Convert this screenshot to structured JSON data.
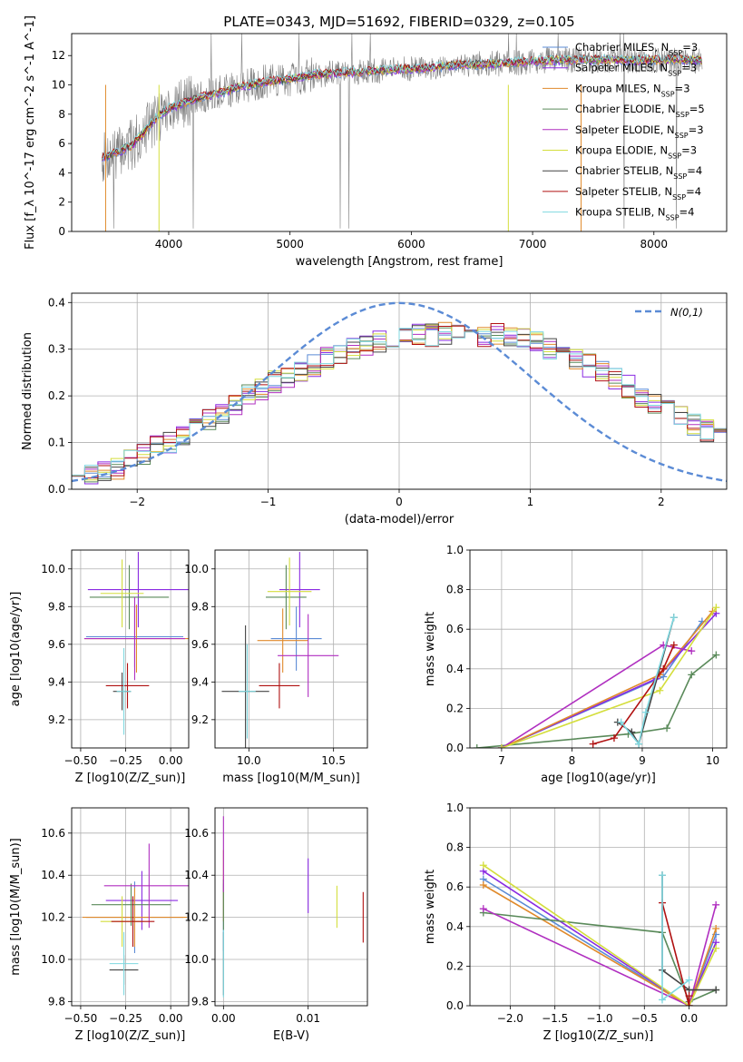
{
  "figure": {
    "title": "PLATE=0343, MJD=51692, FIBERID=0329, z=0.105"
  },
  "models": [
    {
      "name": "Chabrier MILES",
      "nssp": "3",
      "color": "#5b8bd5"
    },
    {
      "name": "Salpeter MILES",
      "nssp": "3",
      "color": "#8a2be2"
    },
    {
      "name": "Kroupa MILES",
      "nssp": "3",
      "color": "#e08a2b"
    },
    {
      "name": "Chabrier ELODIE",
      "nssp": "5",
      "color": "#5a8a5a"
    },
    {
      "name": "Salpeter ELODIE",
      "nssp": "3",
      "color": "#b02fc0"
    },
    {
      "name": "Kroupa ELODIE",
      "nssp": "3",
      "color": "#d4de3c"
    },
    {
      "name": "Chabrier STELIB",
      "nssp": "4",
      "color": "#444444"
    },
    {
      "name": "Salpeter STELIB",
      "nssp": "4",
      "color": "#b01010"
    },
    {
      "name": "Kroupa STELIB",
      "nssp": "4",
      "color": "#7fd8e0"
    }
  ],
  "chart_data": [
    {
      "id": "spectrum",
      "type": "line",
      "xlabel": "wavelength [Angstrom, rest frame]",
      "ylabel": "Flux [f_λ 10^-17 erg cm^-2 s^-1 A^-1]",
      "xlim": [
        3200,
        8600
      ],
      "ylim": [
        0,
        13.5
      ],
      "xticks": [
        4000,
        5000,
        6000,
        7000,
        8000
      ],
      "yticks": [
        0,
        2,
        4,
        6,
        8,
        10,
        12
      ],
      "grid": false,
      "legend": "right",
      "data_color": "#808080",
      "continuum_x": [
        3450,
        3600,
        3700,
        3800,
        3900,
        4000,
        4200,
        4400,
        4600,
        4800,
        5000,
        5200,
        5400,
        5600,
        5800,
        6000,
        6200,
        6400,
        6600,
        6800,
        7000,
        7200,
        7400
      ],
      "continuum_y": [
        5.0,
        5.5,
        5.9,
        6.8,
        7.8,
        8.4,
        9.0,
        9.4,
        9.9,
        10.2,
        10.4,
        10.7,
        10.8,
        10.9,
        11.0,
        11.1,
        11.2,
        11.4,
        11.4,
        11.5,
        11.6,
        11.7,
        11.7
      ]
    },
    {
      "id": "residuals",
      "type": "histogram",
      "xlabel": "(data-model)/error",
      "ylabel": "Normed distribution",
      "xlim": [
        -2.5,
        2.5
      ],
      "ylim": [
        0,
        0.42
      ],
      "xticks": [
        -2,
        -1,
        0,
        1,
        2
      ],
      "yticks": [
        0.0,
        0.1,
        0.2,
        0.3,
        0.4
      ],
      "grid": true,
      "legend": "top-right",
      "gaussian_label": "N(0,1)",
      "gaussian_color": "#5b8bd5",
      "bin_edges_start": -2.5,
      "bin_width": 0.1,
      "base_hist": [
        0.035,
        0.035,
        0.04,
        0.045,
        0.06,
        0.075,
        0.09,
        0.1,
        0.12,
        0.135,
        0.15,
        0.165,
        0.18,
        0.2,
        0.215,
        0.23,
        0.24,
        0.25,
        0.265,
        0.28,
        0.29,
        0.3,
        0.31,
        0.315,
        0.32,
        0.325,
        0.33,
        0.33,
        0.335,
        0.335,
        0.335,
        0.33,
        0.33,
        0.325,
        0.32,
        0.315,
        0.3,
        0.29,
        0.28,
        0.265,
        0.25,
        0.235,
        0.22,
        0.2,
        0.185,
        0.17,
        0.155,
        0.14,
        0.125,
        0.11
      ]
    },
    {
      "id": "Z_vs_age",
      "type": "scatter",
      "xlabel": "Z [log10(Z/Z_sun)]",
      "ylabel": "age [log10(age/yr)]",
      "xlim": [
        -0.55,
        0.1
      ],
      "ylim": [
        9.05,
        10.1
      ],
      "xticks": [
        -0.5,
        -0.25,
        0.0
      ],
      "yticks": [
        9.2,
        9.4,
        9.6,
        9.8,
        10.0
      ],
      "grid": true,
      "points": [
        {
          "model": 0,
          "x": -0.2,
          "xerr": 0.27,
          "y": 9.64,
          "yerr": 0.16
        },
        {
          "model": 1,
          "x": -0.18,
          "xerr": 0.28,
          "y": 9.89,
          "yerr": 0.2
        },
        {
          "model": 2,
          "x": -0.19,
          "xerr": 0.29,
          "y": 9.63,
          "yerr": 0.18
        },
        {
          "model": 3,
          "x": -0.23,
          "xerr": 0.22,
          "y": 9.85,
          "yerr": 0.17
        },
        {
          "model": 4,
          "x": -0.2,
          "xerr": 0.28,
          "y": 9.63,
          "yerr": 0.22
        },
        {
          "model": 5,
          "x": -0.27,
          "xerr": 0.12,
          "y": 9.87,
          "yerr": 0.18
        },
        {
          "model": 6,
          "x": -0.27,
          "xerr": 0.05,
          "y": 9.35,
          "yerr": 0.1
        },
        {
          "model": 7,
          "x": -0.24,
          "xerr": 0.12,
          "y": 9.38,
          "yerr": 0.12
        },
        {
          "model": 8,
          "x": -0.26,
          "xerr": 0.04,
          "y": 9.35,
          "yerr": 0.23
        }
      ]
    },
    {
      "id": "mass_vs_age",
      "type": "scatter",
      "xlabel": "mass [log10(M/M_sun)]",
      "ylabel": "",
      "xlim": [
        9.8,
        10.7
      ],
      "ylim": [
        9.05,
        10.1
      ],
      "xticks": [
        10.0,
        10.5
      ],
      "yticks": [
        9.2,
        9.4,
        9.6,
        9.8,
        10.0
      ],
      "grid": true,
      "points": [
        {
          "model": 0,
          "x": 10.28,
          "xerr": 0.15,
          "y": 9.63,
          "yerr": 0.17
        },
        {
          "model": 1,
          "x": 10.3,
          "xerr": 0.12,
          "y": 9.89,
          "yerr": 0.2
        },
        {
          "model": 2,
          "x": 10.2,
          "xerr": 0.15,
          "y": 9.62,
          "yerr": 0.17
        },
        {
          "model": 3,
          "x": 10.22,
          "xerr": 0.12,
          "y": 9.85,
          "yerr": 0.17
        },
        {
          "model": 4,
          "x": 10.35,
          "xerr": 0.18,
          "y": 9.54,
          "yerr": 0.22
        },
        {
          "model": 5,
          "x": 10.24,
          "xerr": 0.13,
          "y": 9.88,
          "yerr": 0.18
        },
        {
          "model": 6,
          "x": 9.98,
          "xerr": 0.14,
          "y": 9.35,
          "yerr": 0.35
        },
        {
          "model": 7,
          "x": 10.18,
          "xerr": 0.12,
          "y": 9.38,
          "yerr": 0.12
        },
        {
          "model": 8,
          "x": 9.99,
          "xerr": 0.05,
          "y": 9.35,
          "yerr": 0.25
        }
      ]
    },
    {
      "id": "age_vs_massweight",
      "type": "line",
      "xlabel": "age [log10(age/yr)]",
      "ylabel": "mass weight",
      "xlim": [
        6.55,
        10.2
      ],
      "ylim": [
        0,
        1.0
      ],
      "xticks": [
        7,
        8,
        9,
        10
      ],
      "yticks": [
        0.0,
        0.2,
        0.4,
        0.6,
        0.8,
        1.0
      ],
      "grid": true,
      "series": [
        {
          "model": 0,
          "x": [
            7.0,
            9.3,
            9.85
          ],
          "y": [
            0.0,
            0.36,
            0.64
          ]
        },
        {
          "model": 1,
          "x": [
            7.0,
            9.2,
            10.05
          ],
          "y": [
            0.0,
            0.35,
            0.68
          ]
        },
        {
          "model": 2,
          "x": [
            7.0,
            9.25,
            10.0
          ],
          "y": [
            0.0,
            0.37,
            0.69
          ]
        },
        {
          "model": 3,
          "x": [
            6.65,
            8.8,
            9.35,
            9.7,
            10.05
          ],
          "y": [
            0.0,
            0.07,
            0.1,
            0.37,
            0.47
          ]
        },
        {
          "model": 4,
          "x": [
            7.0,
            9.3,
            9.7
          ],
          "y": [
            0.0,
            0.52,
            0.49
          ]
        },
        {
          "model": 5,
          "x": [
            7.0,
            9.25,
            10.05
          ],
          "y": [
            0.0,
            0.29,
            0.71
          ]
        },
        {
          "model": 6,
          "x": [
            8.65,
            8.85,
            8.95,
            9.45
          ],
          "y": [
            0.13,
            0.08,
            0.02,
            0.66
          ]
        },
        {
          "model": 7,
          "x": [
            8.3,
            8.6,
            9.3,
            9.45
          ],
          "y": [
            0.02,
            0.05,
            0.4,
            0.52
          ]
        },
        {
          "model": 8,
          "x": [
            8.7,
            8.95,
            9.05,
            9.45
          ],
          "y": [
            0.13,
            0.02,
            0.18,
            0.66
          ]
        }
      ]
    },
    {
      "id": "Z_vs_mass",
      "type": "scatter",
      "xlabel": "Z [log10(Z/Z_sun)]",
      "ylabel": "mass [log10(M/M_sun)]",
      "xlim": [
        -0.55,
        0.1
      ],
      "ylim": [
        9.78,
        10.72
      ],
      "xticks": [
        -0.5,
        -0.25,
        0.0
      ],
      "yticks": [
        9.8,
        10.0,
        10.2,
        10.4,
        10.6
      ],
      "grid": true,
      "points": [
        {
          "model": 0,
          "x": -0.2,
          "xerr": 0.27,
          "y": 10.2,
          "yerr": 0.17
        },
        {
          "model": 1,
          "x": -0.16,
          "xerr": 0.2,
          "y": 10.28,
          "yerr": 0.14
        },
        {
          "model": 2,
          "x": -0.2,
          "xerr": 0.29,
          "y": 10.2,
          "yerr": 0.14
        },
        {
          "model": 3,
          "x": -0.22,
          "xerr": 0.22,
          "y": 10.26,
          "yerr": 0.1
        },
        {
          "model": 4,
          "x": -0.12,
          "xerr": 0.25,
          "y": 10.35,
          "yerr": 0.2
        },
        {
          "model": 5,
          "x": -0.27,
          "xerr": 0.12,
          "y": 10.18,
          "yerr": 0.12
        },
        {
          "model": 6,
          "x": -0.26,
          "xerr": 0.08,
          "y": 9.95,
          "yerr": 0.07
        },
        {
          "model": 7,
          "x": -0.21,
          "xerr": 0.12,
          "y": 10.18,
          "yerr": 0.12
        },
        {
          "model": 8,
          "x": -0.26,
          "xerr": 0.08,
          "y": 9.98,
          "yerr": 0.15
        }
      ]
    },
    {
      "id": "ebv_vs_mass",
      "type": "scatter",
      "xlabel": "E(B-V)",
      "ylabel": "",
      "xlim": [
        -0.001,
        0.017
      ],
      "ylim": [
        9.78,
        10.72
      ],
      "xticks": [
        0.0,
        0.01
      ],
      "yticks": [
        9.8,
        10.0,
        10.2,
        10.4,
        10.6
      ],
      "grid": true,
      "points": [
        {
          "model": 0,
          "x": 0.0,
          "xerr": 0,
          "y": 10.2,
          "yerr": 0.16
        },
        {
          "model": 1,
          "x": 0.01,
          "xerr": 0,
          "y": 10.35,
          "yerr": 0.13
        },
        {
          "model": 2,
          "x": 0.0,
          "xerr": 0,
          "y": 10.35,
          "yerr": 0.17
        },
        {
          "model": 3,
          "x": 0.0,
          "xerr": 0,
          "y": 10.26,
          "yerr": 0.12
        },
        {
          "model": 4,
          "x": 0.0,
          "xerr": 0,
          "y": 10.5,
          "yerr": 0.18
        },
        {
          "model": 5,
          "x": 0.0134,
          "xerr": 0,
          "y": 10.25,
          "yerr": 0.1
        },
        {
          "model": 6,
          "x": 0.0,
          "xerr": 0,
          "y": 9.98,
          "yerr": 0.15
        },
        {
          "model": 7,
          "x": 0.0165,
          "xerr": 0,
          "y": 10.2,
          "yerr": 0.12
        },
        {
          "model": 8,
          "x": 0.0,
          "xerr": 0,
          "y": 9.98,
          "yerr": 0.16
        }
      ]
    },
    {
      "id": "Z_vs_massweight",
      "type": "line",
      "xlabel": "Z [log10(Z/Z_sun)]",
      "ylabel": "mass weight",
      "xlim": [
        -2.45,
        0.42
      ],
      "ylim": [
        0,
        1.0
      ],
      "xticks": [
        -2.0,
        -1.5,
        -1.0,
        -0.5,
        0.0
      ],
      "yticks": [
        0.0,
        0.2,
        0.4,
        0.6,
        0.8,
        1.0
      ],
      "grid": true,
      "series": [
        {
          "model": 0,
          "x": [
            -2.3,
            0.0,
            0.3
          ],
          "y": [
            0.64,
            0.0,
            0.36
          ]
        },
        {
          "model": 1,
          "x": [
            -2.3,
            0.0,
            0.3
          ],
          "y": [
            0.68,
            0.0,
            0.32
          ]
        },
        {
          "model": 2,
          "x": [
            -2.3,
            0.0,
            0.3
          ],
          "y": [
            0.61,
            0.0,
            0.39
          ]
        },
        {
          "model": 3,
          "x": [
            -2.3,
            -0.3,
            0.0,
            0.3
          ],
          "y": [
            0.47,
            0.37,
            0.02,
            0.08
          ]
        },
        {
          "model": 4,
          "x": [
            -2.3,
            0.0,
            0.3
          ],
          "y": [
            0.49,
            0.0,
            0.51
          ]
        },
        {
          "model": 5,
          "x": [
            -2.3,
            0.0,
            0.3
          ],
          "y": [
            0.71,
            0.0,
            0.29
          ]
        },
        {
          "model": 6,
          "x": [
            -0.3,
            -0.3,
            0.0,
            0.3
          ],
          "y": [
            0.66,
            0.18,
            0.08,
            0.08
          ]
        },
        {
          "model": 7,
          "x": [
            -0.3,
            0.0,
            0.0
          ],
          "y": [
            0.52,
            0.0,
            0.05
          ]
        },
        {
          "model": 8,
          "x": [
            -0.3,
            -0.3,
            0.0
          ],
          "y": [
            0.66,
            0.03,
            0.13
          ]
        }
      ]
    }
  ]
}
